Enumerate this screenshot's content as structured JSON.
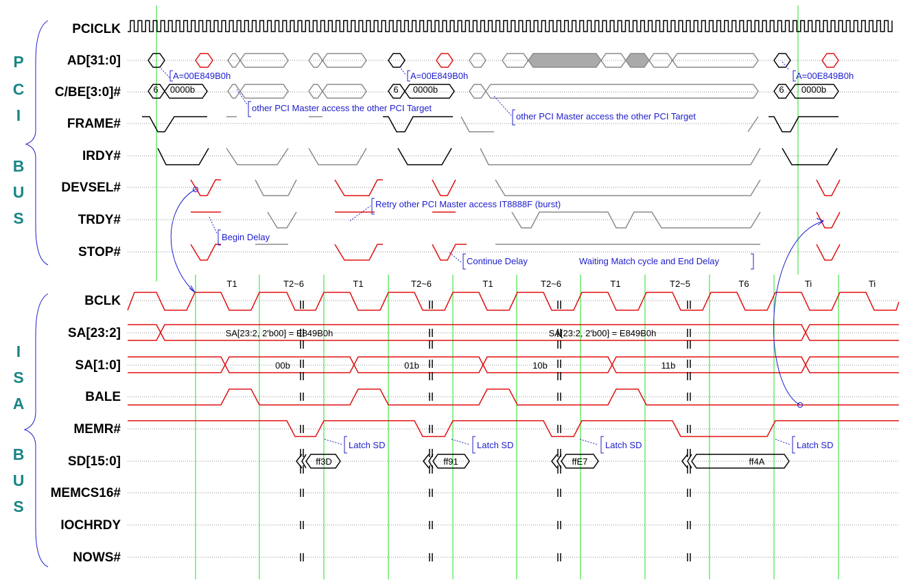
{
  "bus_labels": {
    "pci": [
      "P",
      "C",
      "I",
      "B",
      "U",
      "S"
    ],
    "isa": [
      "I",
      "S",
      "A",
      "B",
      "U",
      "S"
    ]
  },
  "signals": {
    "pci": [
      "PCICLK",
      "AD[31:0]",
      "C/BE[3:0]#",
      "FRAME#",
      "IRDY#",
      "DEVSEL#",
      "TRDY#",
      "STOP#"
    ],
    "isa": [
      "BCLK",
      "SA[23:2]",
      "SA[1:0]",
      "BALE",
      "MEMR#",
      "SD[15:0]",
      "MEMCS16#",
      "IOCHRDY",
      "NOWS#"
    ]
  },
  "cycle_labels": [
    "T1",
    "T2~6",
    "T1",
    "T2~6",
    "T1",
    "T2~6",
    "T1",
    "T2~5",
    "T6",
    "Ti",
    "Ti"
  ],
  "values": {
    "cbe_cmd": "6",
    "cbe_be": "0000b",
    "sa_hi": "SA[23:2, 2'b00] = E849B0h",
    "sa_lo": [
      "00b",
      "01b",
      "10b",
      "11b"
    ],
    "sd": [
      "ff3D",
      "ff91",
      "ffE7",
      "ff4A"
    ]
  },
  "annotations": {
    "address": "A=00E849B0h",
    "other_master": "other PCI Master access the other PCI Target",
    "retry": "Retry other PCI Master  access IT8888F (burst)",
    "begin_delay": "Begin Delay",
    "continue_delay": "Continue Delay",
    "waiting": "Waiting Match cycle and End Delay",
    "latch": "Latch SD"
  },
  "colors": {
    "active": "#000000",
    "idle": "#8a8a8a",
    "target": "#e01010",
    "grid": "#22dd22",
    "note": "#1c1ccc",
    "bus_label": "#1a8585"
  }
}
